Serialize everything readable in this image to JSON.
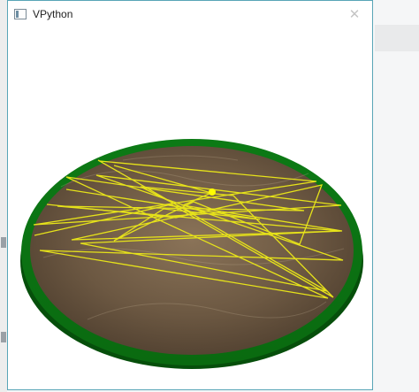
{
  "window": {
    "title": "VPython",
    "close_glyph": "✕",
    "border_color": "#59a5b7"
  },
  "scene": {
    "description_icons": [
      "app-window-icon",
      "close-icon"
    ],
    "colors": {
      "rim": "#0b6d12",
      "rim_shadow": "#064a0a",
      "floor": "#6f5a44",
      "paths": "#e6e21a",
      "ball": "#ffff00"
    }
  }
}
